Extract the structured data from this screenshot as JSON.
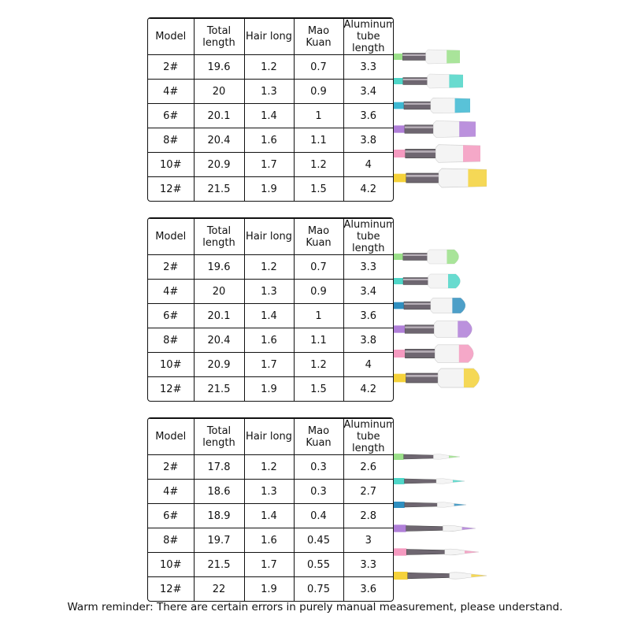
{
  "tables": [
    {
      "header": [
        "Model",
        "Total length",
        "Hair long",
        "Mao Kuan",
        "Aluminum tube length"
      ],
      "rows": [
        [
          "2#",
          19.6,
          1.2,
          0.7,
          3.3
        ],
        [
          "4#",
          20,
          1.3,
          0.9,
          3.4
        ],
        [
          "6#",
          20.1,
          1.4,
          1,
          3.6
        ],
        [
          "8#",
          20.4,
          1.6,
          1.1,
          3.8
        ],
        [
          "10#",
          20.9,
          1.7,
          1.2,
          4
        ],
        [
          "12#",
          21.5,
          1.9,
          1.5,
          4.2
        ]
      ]
    },
    {
      "header": [
        "Model",
        "Total length",
        "Hair long",
        "Mao Kuan",
        "Aluminum tube length"
      ],
      "rows": [
        [
          "2#",
          19.6,
          1.2,
          0.7,
          3.3
        ],
        [
          "4#",
          20,
          1.3,
          0.9,
          3.4
        ],
        [
          "6#",
          20.1,
          1.4,
          1,
          3.6
        ],
        [
          "8#",
          20.4,
          1.6,
          1.1,
          3.8
        ],
        [
          "10#",
          20.9,
          1.7,
          1.2,
          4
        ],
        [
          "12#",
          21.5,
          1.9,
          1.5,
          4.2
        ]
      ]
    },
    {
      "header": [
        "Model",
        "Total length",
        "Hair long",
        "Mao Kuan",
        "Aluminum tube length"
      ],
      "rows": [
        [
          "2#",
          17.8,
          1.2,
          0.3,
          2.6
        ],
        [
          "4#",
          18.6,
          1.3,
          0.3,
          2.7
        ],
        [
          "6#",
          18.9,
          1.4,
          0.4,
          2.8
        ],
        [
          "8#",
          19.7,
          1.6,
          0.45,
          3
        ],
        [
          "10#",
          21.5,
          1.7,
          0.55,
          3.3
        ],
        [
          "12#",
          22,
          1.9,
          0.75,
          3.6
        ]
      ]
    }
  ],
  "footer": "Warm reminder: There are certain errors in purely manual measurement, please understand."
}
